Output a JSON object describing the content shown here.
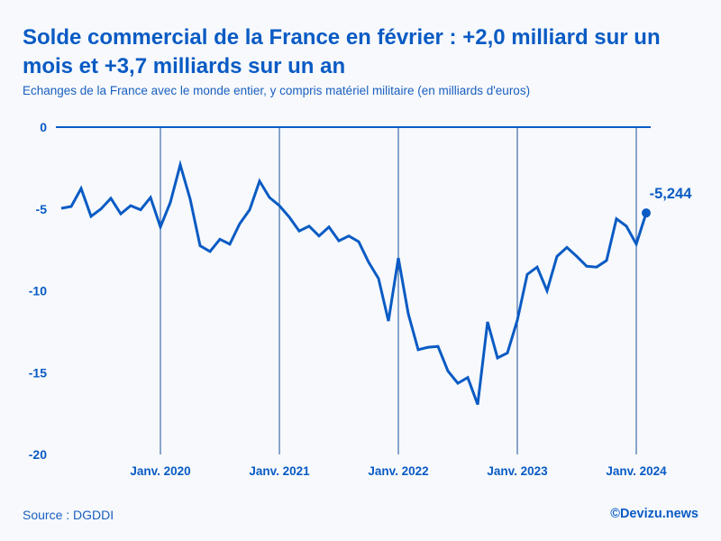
{
  "title": "Solde commercial de la France en février : +2,0 milliard sur un mois et +3,7 milliards sur un an",
  "subtitle": "Echanges de la France avec le monde entier, y compris matériel militaire (en milliards d'euros)",
  "source": "Source : DGDDI",
  "brand": "©Devizu.news",
  "colors": {
    "line": "#0a5bc4",
    "text": "#0a5bc4",
    "grid": "#1a4f99"
  },
  "chart_data": {
    "type": "line",
    "title": "Solde commercial de la France en février : +2,0 milliard sur un mois et +3,7 milliards sur un an",
    "subtitle": "Echanges de la France avec le monde entier, y compris matériel militaire (en milliards d'euros)",
    "x_start": "2019-03",
    "x_end": "2024-02",
    "x_ticks": [
      {
        "date": "2020-01",
        "label": "Janv. 2020"
      },
      {
        "date": "2021-01",
        "label": "Janv. 2021"
      },
      {
        "date": "2022-01",
        "label": "Janv. 2022"
      },
      {
        "date": "2023-01",
        "label": "Janv. 2023"
      },
      {
        "date": "2024-01",
        "label": "Janv. 2024"
      }
    ],
    "y_ticks": [
      {
        "value": 0,
        "label": "0"
      },
      {
        "value": -5,
        "label": "-5"
      },
      {
        "value": -10,
        "label": "-10"
      },
      {
        "value": -15,
        "label": "-15"
      },
      {
        "value": -20,
        "label": "-20"
      }
    ],
    "ylim": [
      -20,
      0
    ],
    "grid": "vertical lines at January",
    "values": [
      -4.96,
      -4.85,
      -3.75,
      -5.45,
      -5.0,
      -4.35,
      -5.3,
      -4.8,
      -5.05,
      -4.3,
      -6.1,
      -4.6,
      -2.3,
      -4.4,
      -7.25,
      -7.6,
      -6.85,
      -7.15,
      -5.9,
      -5.05,
      -3.3,
      -4.3,
      -4.8,
      -5.5,
      -6.35,
      -6.05,
      -6.65,
      -6.1,
      -6.95,
      -6.65,
      -7.0,
      -8.25,
      -9.25,
      -11.85,
      -8.0,
      -11.4,
      -13.6,
      -13.45,
      -13.4,
      -14.9,
      -15.65,
      -15.3,
      -16.95,
      -11.9,
      -14.1,
      -13.8,
      -11.8,
      -9.0,
      -8.55,
      -10.0,
      -7.9,
      -7.35,
      -7.9,
      -8.5,
      -8.55,
      -8.15,
      -5.6,
      -6.05,
      -7.15,
      -5.244
    ],
    "last_value_label": "-5,244"
  }
}
